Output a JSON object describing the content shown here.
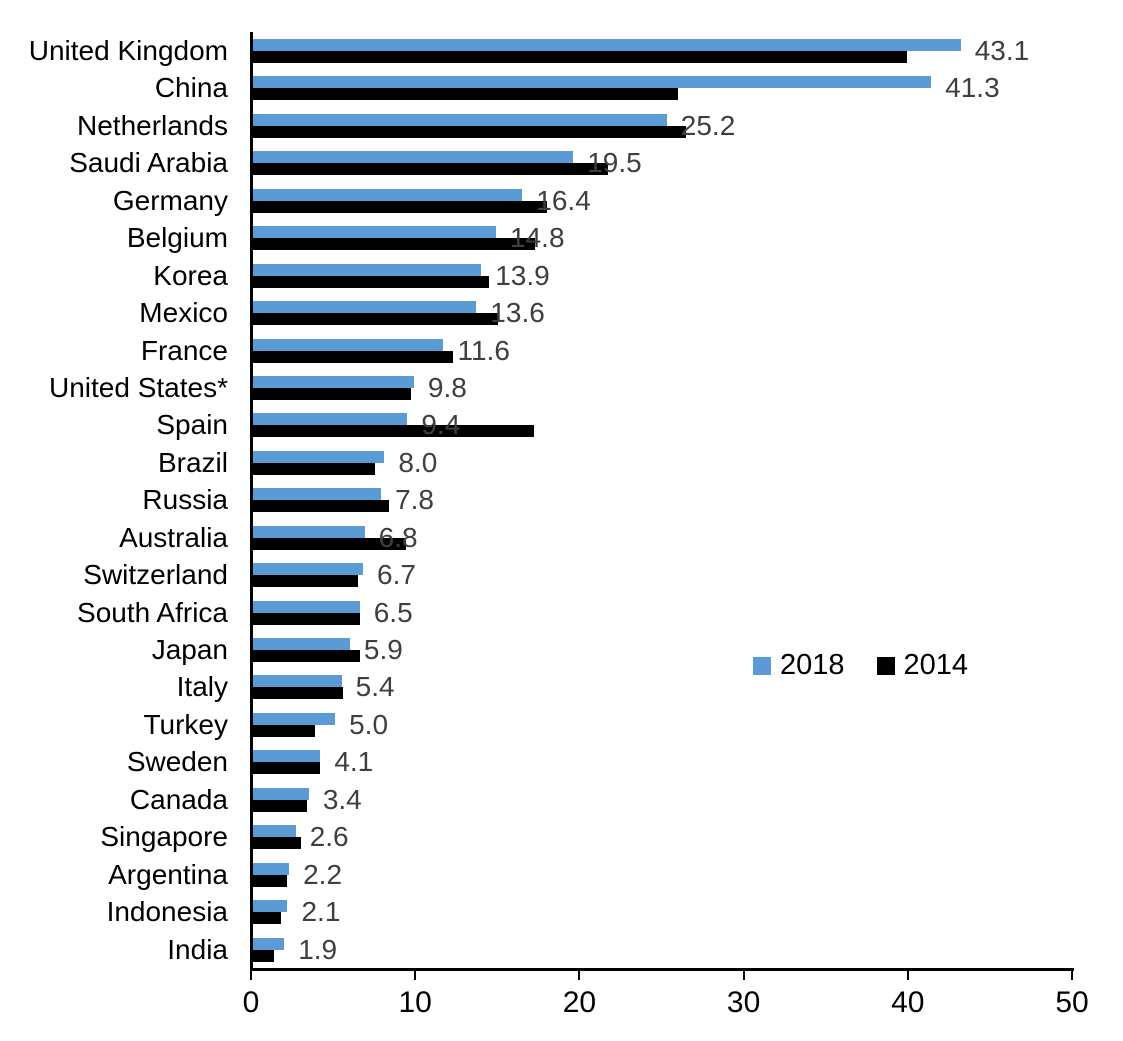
{
  "chart_data": {
    "type": "bar",
    "orientation": "horizontal",
    "title": "",
    "categories": [
      "United Kingdom",
      "China",
      "Netherlands",
      "Saudi Arabia",
      "Germany",
      "Belgium",
      "Korea",
      "Mexico",
      "France",
      "United States*",
      "Spain",
      "Brazil",
      "Russia",
      "Australia",
      "Switzerland",
      "South Africa",
      "Japan",
      "Italy",
      "Turkey",
      "Sweden",
      "Canada",
      "Singapore",
      "Argentina",
      "Indonesia",
      "India"
    ],
    "series": [
      {
        "name": "2018",
        "color": "#5B9BD5",
        "values": [
          43.1,
          41.3,
          25.2,
          19.5,
          16.4,
          14.8,
          13.9,
          13.6,
          11.6,
          9.8,
          9.4,
          8.0,
          7.8,
          6.8,
          6.7,
          6.5,
          5.9,
          5.4,
          5.0,
          4.1,
          3.4,
          2.6,
          2.2,
          2.1,
          1.9
        ]
      },
      {
        "name": "2014",
        "color": "#000000",
        "values": [
          39.8,
          25.9,
          26.4,
          21.6,
          17.9,
          17.2,
          14.4,
          14.9,
          12.2,
          9.6,
          17.1,
          7.4,
          8.3,
          9.3,
          6.4,
          6.5,
          6.5,
          5.5,
          3.8,
          4.1,
          3.3,
          2.9,
          2.1,
          1.7,
          1.3
        ]
      }
    ],
    "value_labels": [
      "43.1",
      "41.3",
      "25.2",
      "19.5",
      "16.4",
      "14.8",
      "13.9",
      "13.6",
      "11.6",
      "9.8",
      "9.4",
      "8.0",
      "7.8",
      "6.8",
      "6.7",
      "6.5",
      "5.9",
      "5.4",
      "5.0",
      "4.1",
      "3.4",
      "2.6",
      "2.2",
      "2.1",
      "1.9"
    ],
    "value_labels_series": "2018",
    "xlim": [
      0,
      50
    ],
    "x_ticks": [
      "0",
      "10",
      "20",
      "30",
      "40",
      "50"
    ],
    "grid": false,
    "legend_position": "middle-right"
  },
  "legend": {
    "items": [
      {
        "label": "2018",
        "color": "#5B9BD5"
      },
      {
        "label": "2014",
        "color": "#000000"
      }
    ]
  },
  "colors": {
    "bar_2018": "#5B9BD5",
    "bar_2014": "#000000",
    "value_label": "#3F3F3F",
    "axis": "#000000",
    "background": "#FFFFFF"
  }
}
